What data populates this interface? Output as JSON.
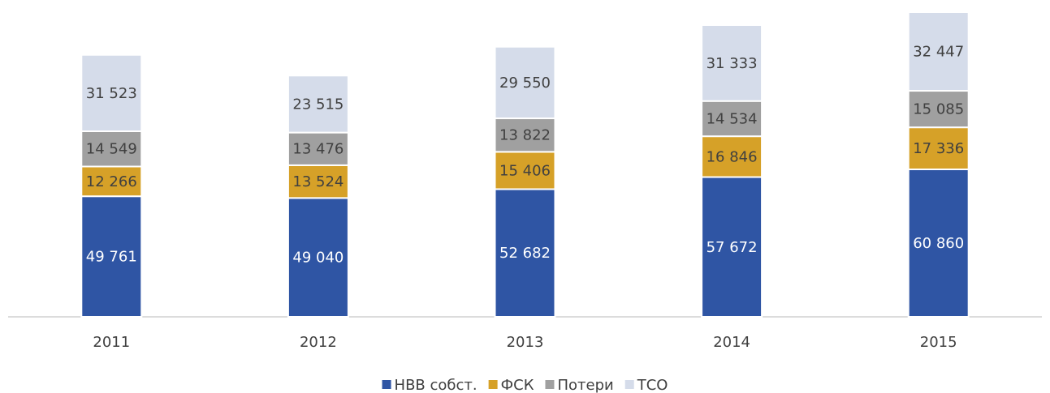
{
  "chart_data": {
    "type": "stacked_bar",
    "categories": [
      "2011",
      "2012",
      "2013",
      "2014",
      "2015"
    ],
    "series": [
      {
        "name": "НВВ собст.",
        "color": "#2f55a4",
        "values": [
          49761,
          49040,
          52682,
          57672,
          60860
        ],
        "value_labels": [
          "49 761",
          "49 040",
          "52 682",
          "57 672",
          "60 860"
        ]
      },
      {
        "name": "ФСК",
        "color": "#d6a128",
        "values": [
          12266,
          13524,
          15406,
          16846,
          17336
        ],
        "value_labels": [
          "12 266",
          "13 524",
          "15 406",
          "16 846",
          "17 336"
        ]
      },
      {
        "name": "Потери",
        "color": "#a0a0a0",
        "values": [
          14549,
          13476,
          13822,
          14534,
          15085
        ],
        "value_labels": [
          "14 549",
          "13 476",
          "13 822",
          "14 534",
          "15 085"
        ]
      },
      {
        "name": "ТСО",
        "color": "#d5dcea",
        "values": [
          31523,
          23515,
          29550,
          31333,
          32447
        ],
        "value_labels": [
          "31 523",
          "23 515",
          "29 550",
          "31 333",
          "32 447"
        ]
      }
    ],
    "legend": "bottom"
  }
}
